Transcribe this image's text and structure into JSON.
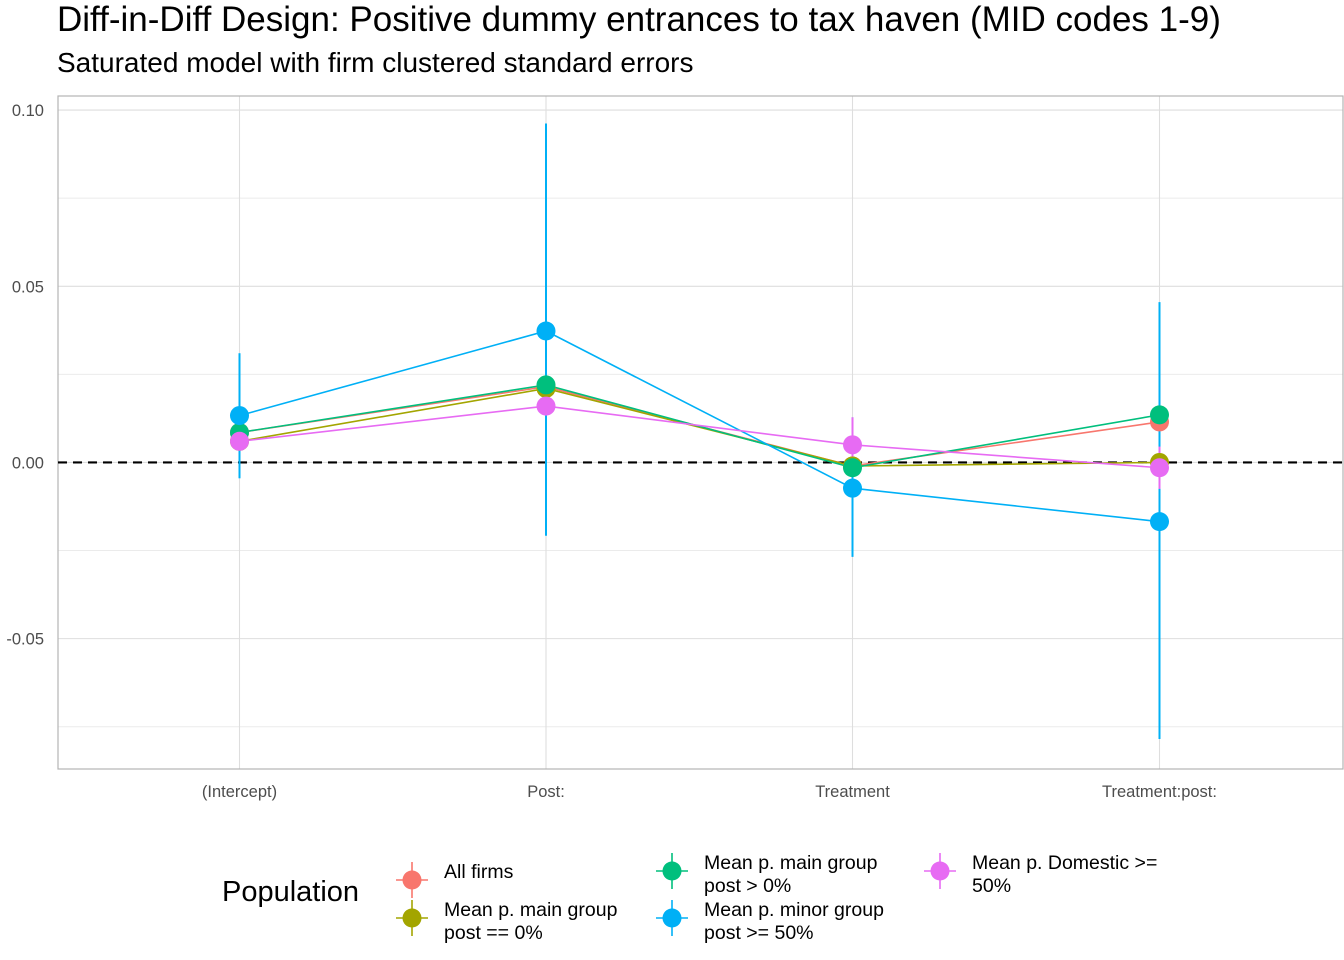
{
  "chart_data": {
    "type": "scatter",
    "title": "Diff-in-Diff Design: Positive dummy entrances to tax haven (MID codes 1-9)",
    "subtitle": "Saturated model with firm clustered standard errors",
    "categories": [
      "(Intercept)",
      "Post:",
      "Treatment",
      "Treatment:post:"
    ],
    "y_ticks": [
      {
        "value": 0.1,
        "label": "0.10"
      },
      {
        "value": 0.05,
        "label": "0.05"
      },
      {
        "value": 0.0,
        "label": "0.00"
      },
      {
        "value": -0.05,
        "label": "-0.05"
      }
    ],
    "ylim": [
      -0.087,
      0.104
    ],
    "reference_line": {
      "y": 0,
      "style": "dashed"
    },
    "grid": true,
    "legend_title": "Population",
    "legend_position": "bottom",
    "series": [
      {
        "name": "All firms",
        "color": "#F8766D",
        "values": [
          0.0085,
          0.0215,
          -0.001,
          0.0115
        ],
        "lower": [
          0.0085,
          0.0215,
          -0.001,
          0.0115
        ],
        "upper": [
          0.0085,
          0.0215,
          -0.001,
          0.0115
        ]
      },
      {
        "name": "Mean p. main group\npost == 0%",
        "color": "#A3A500",
        "values": [
          0.006,
          0.021,
          -0.001,
          0.0
        ],
        "lower": [
          0.006,
          0.021,
          -0.001,
          0.0
        ],
        "upper": [
          0.006,
          0.021,
          -0.001,
          0.0
        ]
      },
      {
        "name": "Mean p. main group\npost > 0%",
        "color": "#00BF7D",
        "values": [
          0.0085,
          0.022,
          -0.0015,
          0.0135
        ],
        "lower": [
          0.0085,
          0.022,
          -0.0015,
          0.0135
        ],
        "upper": [
          0.0085,
          0.022,
          -0.0015,
          0.0135
        ]
      },
      {
        "name": "Mean p. minor group\npost >= 50%",
        "color": "#00B0F6",
        "values": [
          0.0133,
          0.0373,
          -0.0073,
          -0.0168
        ],
        "lower": [
          -0.0045,
          -0.0208,
          -0.0268,
          -0.0785
        ],
        "upper": [
          0.031,
          0.0962,
          0.0128,
          0.0455
        ]
      },
      {
        "name": "Mean p. Domestic >=\n50%",
        "color": "#E76BF3",
        "values": [
          0.006,
          0.016,
          0.005,
          -0.0015
        ],
        "lower": [
          0.006,
          0.016,
          -0.0035,
          -0.0075
        ],
        "upper": [
          0.006,
          0.016,
          0.0128,
          0.0045
        ]
      }
    ]
  }
}
